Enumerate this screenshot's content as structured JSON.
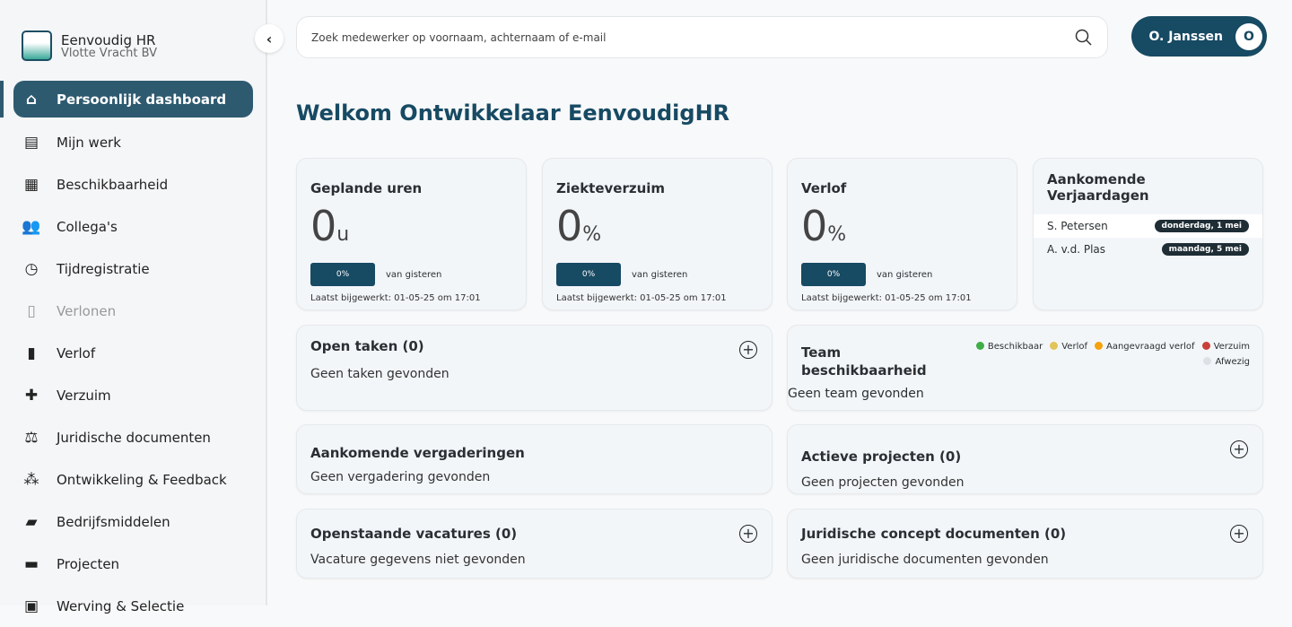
{
  "app": {
    "name": "Eenvoudig HR",
    "company": "Vlotte Vracht BV"
  },
  "sidebar": {
    "items": [
      {
        "label": "Persoonlijk dashboard",
        "icon": "home-icon",
        "glyph": "⌂"
      },
      {
        "label": "Mijn werk",
        "icon": "list-icon",
        "glyph": "▤"
      },
      {
        "label": "Beschikbaarheid",
        "icon": "calendar-icon",
        "glyph": "▦"
      },
      {
        "label": "Collega's",
        "icon": "people-icon",
        "glyph": "👥"
      },
      {
        "label": "Tijdregistratie",
        "icon": "clipboard-clock-icon",
        "glyph": "◷"
      },
      {
        "label": "Verlonen",
        "icon": "receipt-icon",
        "glyph": "▯"
      },
      {
        "label": "Verlof",
        "icon": "suitcase-icon",
        "glyph": "▮"
      },
      {
        "label": "Verzuim",
        "icon": "medical-icon",
        "glyph": "✚"
      },
      {
        "label": "Juridische documenten",
        "icon": "scale-icon",
        "glyph": "⚖"
      },
      {
        "label": "Ontwikkeling & Feedback",
        "icon": "group-icon",
        "glyph": "⁂"
      },
      {
        "label": "Bedrijfsmiddelen",
        "icon": "folders-icon",
        "glyph": "▰"
      },
      {
        "label": "Projecten",
        "icon": "folder-icon",
        "glyph": "▬"
      },
      {
        "label": "Werving & Selectie",
        "icon": "briefcase-icon",
        "glyph": "▣"
      }
    ]
  },
  "search": {
    "placeholder": "Zoek medewerker op voornaam, achternaam of e-mail"
  },
  "user": {
    "name": "O. Janssen",
    "initial": "O"
  },
  "title": "Welkom Ontwikkelaar EenvoudigHR",
  "stats": [
    {
      "title": "Geplande uren",
      "value": "0",
      "unit": "u",
      "change": "0%",
      "change_label": "van gisteren",
      "updated": "Laatst bijgewerkt: 01-05-25 om 17:01"
    },
    {
      "title": "Ziekteverzuim",
      "value": "0",
      "unit": "%",
      "change": "0%",
      "change_label": "van gisteren",
      "updated": "Laatst bijgewerkt: 01-05-25 om 17:01"
    },
    {
      "title": "Verlof",
      "value": "0",
      "unit": "%",
      "change": "0%",
      "change_label": "van gisteren",
      "updated": "Laatst bijgewerkt: 01-05-25 om 17:01"
    }
  ],
  "birthdays": {
    "title": "Aankomende Verjaardagen",
    "items": [
      {
        "name": "S. Petersen",
        "date": "donderdag, 1 mei"
      },
      {
        "name": "A. v.d. Plas",
        "date": "maandag, 5 mei"
      }
    ]
  },
  "open_tasks": {
    "title": "Open taken (0)",
    "empty": "Geen taken gevonden"
  },
  "team": {
    "title": "Team beschikbaarheid",
    "empty": "Geen team gevonden",
    "legend": [
      {
        "label": "Beschikbaar",
        "color": "#3fae49"
      },
      {
        "label": "Verlof",
        "color": "#e2c55a"
      },
      {
        "label": "Aangevraagd verlof",
        "color": "#f5a20c"
      },
      {
        "label": "Verzuim",
        "color": "#c9403a"
      },
      {
        "label": "Afwezig",
        "color": "#dde0e4"
      }
    ]
  },
  "meetings": {
    "title": "Aankomende vergaderingen",
    "empty": "Geen vergadering gevonden"
  },
  "projects": {
    "title": "Actieve projecten (0)",
    "empty": "Geen projecten gevonden"
  },
  "vacancies": {
    "title": "Openstaande vacatures (0)",
    "empty": "Vacature gegevens niet gevonden"
  },
  "legal_drafts": {
    "title": "Juridische concept documenten (0)",
    "empty": "Geen juridische documenten gevonden"
  }
}
